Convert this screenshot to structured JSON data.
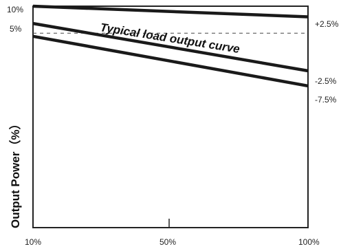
{
  "chart_data": {
    "type": "line",
    "ylabel": "Output Power（%）",
    "annotation": "Typical load output curve",
    "x_ticks": [
      "10%",
      "50%",
      "100%"
    ],
    "y_ticks": [
      "10%",
      "5%"
    ],
    "xlim": [
      10,
      100
    ],
    "ylim": [
      -40,
      10
    ],
    "series": [
      {
        "name": "+2.5%",
        "x": [
          10,
          100
        ],
        "y": [
          10,
          7.6
        ]
      },
      {
        "name": "-2.5%",
        "x": [
          10,
          100
        ],
        "y": [
          6.1,
          -4.6
        ]
      },
      {
        "name": "-7.5%",
        "x": [
          10,
          100
        ],
        "y": [
          3.2,
          -8.0
        ]
      }
    ],
    "reference": {
      "style": "dashed",
      "y": 3.9
    },
    "grid": false
  }
}
